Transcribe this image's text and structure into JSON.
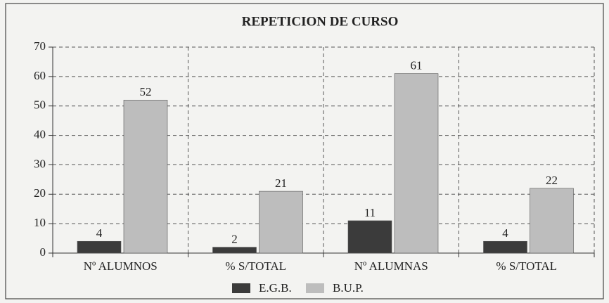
{
  "chart_data": {
    "type": "bar",
    "title": "REPETICION DE CURSO",
    "categories": [
      "Nº ALUMNOS",
      "% S/TOTAL",
      "Nº ALUMNAS",
      "% S/TOTAL"
    ],
    "series": [
      {
        "name": "E.G.B.",
        "color": "#3b3b3b",
        "values": [
          4,
          2,
          11,
          4
        ]
      },
      {
        "name": "B.U.P.",
        "color": "#bdbdbd",
        "values": [
          52,
          21,
          61,
          22
        ]
      }
    ],
    "ylim": [
      0,
      70
    ],
    "yticks": [
      0,
      10,
      20,
      30,
      40,
      50,
      60,
      70
    ],
    "grid": true,
    "legend": "bottom"
  }
}
